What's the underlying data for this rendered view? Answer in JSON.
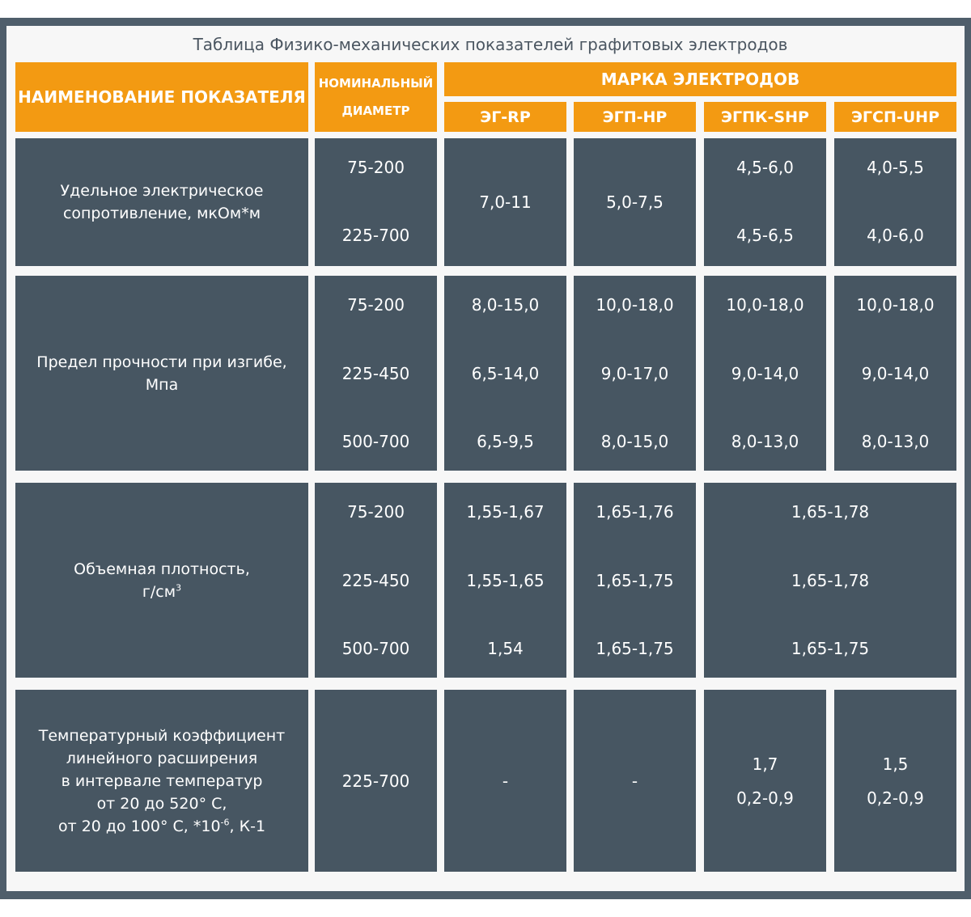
{
  "title": "Таблица Физико-механических показателей графитовых электродов",
  "header": {
    "indicator": "НАИМЕНОВАНИЕ ПОКАЗАТЕЛЯ",
    "diameter_line1": "НОМИНАЛЬНЫЙ",
    "diameter_line2": "ДИАМЕТР",
    "brand": "МАРКА ЭЛЕКТРОДОВ",
    "grades": [
      "ЭГ-RP",
      "ЭГП-HP",
      "ЭГПК-SHP",
      "ЭГСП-UHP"
    ]
  },
  "rows": [
    {
      "label_lines": [
        "Удельное электрическое",
        "сопротивление, мкОм*м"
      ],
      "diameters": [
        "75-200",
        "225-700"
      ],
      "eg": [
        "7,0-11"
      ],
      "egp": [
        "5,0-7,5"
      ],
      "egpk": [
        "4,5-6,0",
        "4,5-6,5"
      ],
      "egsp": [
        "4,0-5,5",
        "4,0-6,0"
      ]
    },
    {
      "label_lines": [
        "Предел прочности при изгибе,",
        "Мпа"
      ],
      "diameters": [
        "75-200",
        "225-450",
        "500-700"
      ],
      "eg": [
        "8,0-15,0",
        "6,5-14,0",
        "6,5-9,5"
      ],
      "egp": [
        "10,0-18,0",
        "9,0-17,0",
        "8,0-15,0"
      ],
      "egpk": [
        "10,0-18,0",
        "9,0-14,0",
        "8,0-13,0"
      ],
      "egsp": [
        "10,0-18,0",
        "9,0-14,0",
        "8,0-13,0"
      ]
    },
    {
      "label_line1": "Объемная плотность,",
      "label_unit": "г/см",
      "label_sup": "3",
      "diameters": [
        "75-200",
        "225-450",
        "500-700"
      ],
      "eg": [
        "1,55-1,67",
        "1,55-1,65",
        "1,54"
      ],
      "egp": [
        "1,65-1,76",
        "1,65-1,75",
        "1,65-1,75"
      ],
      "egpk_egsp": [
        "1,65-1,78",
        "1,65-1,78",
        "1,65-1,75"
      ]
    },
    {
      "label_lines": [
        "Температурный коэффициент",
        "линейного расширения",
        "в интервале температур"
      ],
      "label_line4": "от 20 до 520° С,",
      "label_line5_a": "от 20 до 100° С, *10",
      "label_line5_sup": "-6",
      "label_line5_b": ", К-1",
      "diameters": [
        "225-700"
      ],
      "eg": [
        "-"
      ],
      "egp": [
        "-"
      ],
      "egpk": [
        "1,7",
        "0,2-0,9"
      ],
      "egsp": [
        "1,5",
        "0,2-0,9"
      ]
    }
  ],
  "colors": {
    "header": "#f39a12",
    "body": "#475662",
    "frame": "#4f5e6b",
    "panel": "#f7f7f7"
  }
}
